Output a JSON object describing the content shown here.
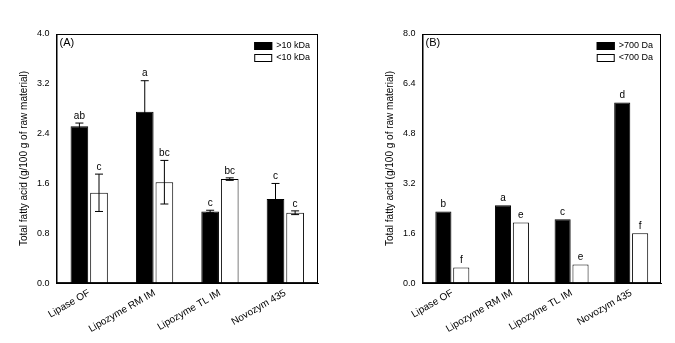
{
  "chart_data": [
    {
      "type": "bar",
      "title": "(A)",
      "y_label": "Total fatty acid (g/100 g of raw material)",
      "categories": [
        "Lipase OF",
        "Lipozyme RM IM",
        "Lipozyme TL IM",
        "Novozym 435"
      ],
      "series": [
        {
          "name": ">10 kDa",
          "color": "#000000",
          "values": [
            2.52,
            2.75,
            1.15,
            1.35
          ],
          "errors": [
            0.05,
            0.5,
            0.02,
            0.25
          ],
          "annotations": [
            "ab",
            "a",
            "c",
            "c"
          ]
        },
        {
          "name": "<10 kDa",
          "color": "#ffffff",
          "values": [
            1.45,
            1.62,
            1.67,
            1.13
          ],
          "errors": [
            0.3,
            0.35,
            0.02,
            0.03
          ],
          "annotations": [
            "c",
            "bc",
            "bc",
            "c"
          ]
        }
      ],
      "ylim": [
        0,
        4
      ],
      "yticks": [
        {
          "value": 0,
          "label": "0.0"
        },
        0.8,
        1.6,
        2.4,
        3.2,
        {
          "value": 4,
          "label": "4.0"
        }
      ],
      "grid": false,
      "legend": "upper right"
    },
    {
      "type": "bar",
      "title": "(B)",
      "y_label": "Total fatty acid (g/100 g of raw material)",
      "categories": [
        "Lipase OF",
        "Lipozyme RM IM",
        "Lipozyme TL IM",
        "Novozym 435"
      ],
      "series": [
        {
          "name": ">700 Da",
          "color": "#000000",
          "values": [
            2.3,
            2.5,
            2.05,
            5.8
          ],
          "annotations": [
            "b",
            "a",
            "c",
            "d"
          ]
        },
        {
          "name": "<700 Da",
          "color": "#ffffff",
          "values": [
            0.5,
            1.95,
            0.6,
            1.6
          ],
          "annotations": [
            "f",
            "e",
            "e",
            "f"
          ]
        }
      ],
      "ylim": [
        0,
        8
      ],
      "yticks": [
        {
          "value": 0,
          "label": "0.0"
        },
        1.6,
        3.2,
        4.8,
        6.4,
        {
          "value": 8,
          "label": "8.0"
        }
      ],
      "grid": false,
      "legend": "upper right"
    }
  ]
}
